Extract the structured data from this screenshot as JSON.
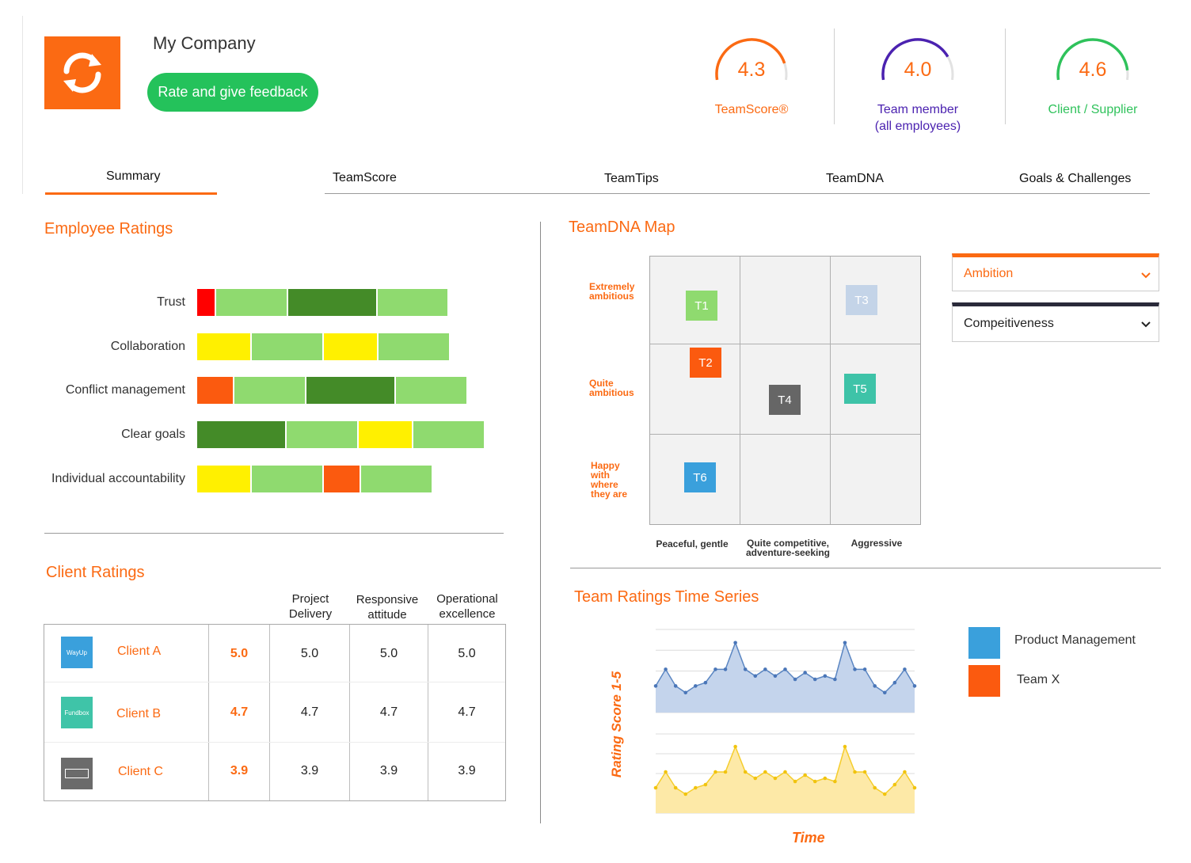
{
  "header": {
    "company_name": "My Company",
    "rate_button": "Rate and give feedback",
    "logo_icon": "sync-arrows-icon",
    "scores": [
      {
        "value": "4.3",
        "label": "TeamScore®",
        "color": "#fb6a13",
        "fraction": 0.86
      },
      {
        "value": "4.0",
        "label": "Team member",
        "sublabel": "(all employees)",
        "color": "#4b22b0",
        "fraction": 0.8
      },
      {
        "value": "4.6",
        "label": "Client / Supplier",
        "color": "#2fc25b",
        "fraction": 0.92
      }
    ]
  },
  "tabs": [
    "Summary",
    "TeamScore",
    "TeamTips",
    "TeamDNA",
    "Goals & Challenges"
  ],
  "active_tab": "Summary",
  "employee_ratings": {
    "title": "Employee Ratings",
    "rows": [
      {
        "label": "Trust",
        "segments": [
          {
            "color": "#ff0000",
            "w": 22
          },
          {
            "color": "#8fda6f",
            "w": 89
          },
          {
            "color": "#448b28",
            "w": 111
          },
          {
            "color": "#8fda6f",
            "w": 88
          }
        ]
      },
      {
        "label": "Collaboration",
        "segments": [
          {
            "color": "#fff000",
            "w": 67
          },
          {
            "color": "#8fda6f",
            "w": 89
          },
          {
            "color": "#fff000",
            "w": 67
          },
          {
            "color": "#8fda6f",
            "w": 89
          }
        ]
      },
      {
        "label": "Conflict management",
        "segments": [
          {
            "color": "#fb5a0f",
            "w": 45
          },
          {
            "color": "#8fda6f",
            "w": 89
          },
          {
            "color": "#448b28",
            "w": 111
          },
          {
            "color": "#8fda6f",
            "w": 89
          }
        ]
      },
      {
        "label": "Clear goals",
        "segments": [
          {
            "color": "#448b28",
            "w": 111
          },
          {
            "color": "#8fda6f",
            "w": 89
          },
          {
            "color": "#fff000",
            "w": 67
          },
          {
            "color": "#8fda6f",
            "w": 89
          }
        ]
      },
      {
        "label": "Individual accountability",
        "segments": [
          {
            "color": "#fff000",
            "w": 67
          },
          {
            "color": "#8fda6f",
            "w": 89
          },
          {
            "color": "#fb5a0f",
            "w": 45
          },
          {
            "color": "#8fda6f",
            "w": 89
          }
        ]
      }
    ]
  },
  "client_ratings": {
    "title": "Client Ratings",
    "columns": [
      {
        "line1": "Project",
        "line2": "Delivery"
      },
      {
        "line1": "Responsive",
        "line2": "attitude"
      },
      {
        "line1": "Operational",
        "line2": "excellence"
      }
    ],
    "rows": [
      {
        "name": "Client A",
        "score": "5.0",
        "values": [
          "5.0",
          "5.0",
          "5.0"
        ],
        "logo_text": "WayUp",
        "logo_color": "#3aa0dc"
      },
      {
        "name": "Client B",
        "score": "4.7",
        "values": [
          "4.7",
          "4.7",
          "4.7"
        ],
        "logo_text": "Fundbox",
        "logo_color": "#3fc4a8"
      },
      {
        "name": "Client C",
        "score": "3.9",
        "values": [
          "3.9",
          "3.9",
          "3.9"
        ],
        "logo_text": "",
        "logo_color": "#6b6b6b"
      }
    ]
  },
  "teamdna": {
    "title": "TeamDNA Map",
    "y_labels": [
      {
        "l1": "Extremely",
        "l2": "ambitious"
      },
      {
        "l1": "Quite",
        "l2": "ambitious"
      },
      {
        "l1": "Happy",
        "l2": "with",
        "l3": "where",
        "l4": "they are"
      }
    ],
    "x_labels": [
      {
        "l1": "Peaceful, gentle"
      },
      {
        "l1": "Quite competitive,",
        "l2": "adventure-seeking"
      },
      {
        "l1": "Aggressive"
      }
    ],
    "teams": [
      {
        "name": "T1",
        "color": "#8fda6f"
      },
      {
        "name": "T2",
        "color": "#fb5a0f"
      },
      {
        "name": "T3",
        "color": "#c4d4e8"
      },
      {
        "name": "T4",
        "color": "#666666"
      },
      {
        "name": "T5",
        "color": "#3ec3a8"
      },
      {
        "name": "T6",
        "color": "#3aa0dc"
      }
    ],
    "dropdowns": [
      {
        "value": "Ambition",
        "accent": "#fb6a13",
        "text_color": "#fb6a13"
      },
      {
        "value": "Compeitiveness",
        "accent": "#2a2a3a",
        "text_color": "#222222"
      }
    ]
  },
  "time_series": {
    "title": "Team Ratings Time Series",
    "ylabel": "Rating Score 1-5",
    "xlabel": "Time",
    "legend": [
      {
        "name": "Product Management",
        "color": "#3aa0dc"
      },
      {
        "name": "Team X",
        "color": "#fb5a0f"
      }
    ]
  },
  "chart_data": {
    "type": "area",
    "title": "Team Ratings Time Series",
    "xlabel": "Time",
    "ylabel": "Rating Score 1-5",
    "series": [
      {
        "values": [
          3.3,
          3.8,
          3.3,
          3.1,
          3.3,
          3.4,
          3.8,
          3.8,
          4.6,
          3.8,
          3.6,
          3.8,
          3.6,
          3.8,
          3.5,
          3.7,
          3.5,
          3.6,
          3.5,
          4.6,
          3.8,
          3.8,
          3.3,
          3.1,
          3.4,
          3.8,
          3.3
        ]
      },
      {
        "values": [
          3.3,
          3.8,
          3.3,
          3.1,
          3.3,
          3.4,
          3.8,
          3.8,
          4.6,
          3.8,
          3.6,
          3.8,
          3.6,
          3.8,
          3.5,
          3.7,
          3.5,
          3.6,
          3.5,
          4.6,
          3.8,
          3.8,
          3.3,
          3.1,
          3.4,
          3.8,
          3.3
        ]
      }
    ]
  }
}
